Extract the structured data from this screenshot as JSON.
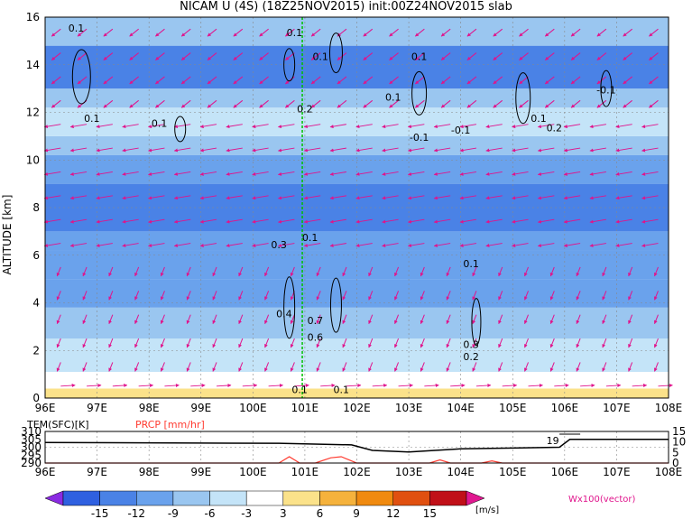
{
  "chart_data": [
    {
      "type": "heatmap",
      "title": "NICAM U (4S) (18Z25NOV2015) init:00Z24NOV2015 slab",
      "ylabel": "ALTITUDE [km]",
      "xlabel": "",
      "x_ticks": [
        "96E",
        "97E",
        "98E",
        "99E",
        "100E",
        "101E",
        "102E",
        "103E",
        "104E",
        "105E",
        "106E",
        "107E",
        "108E"
      ],
      "y_ticks": [
        "0",
        "2",
        "4",
        "6",
        "8",
        "10",
        "12",
        "14",
        "16"
      ],
      "xlim": [
        96,
        108
      ],
      "ylim": [
        0,
        16
      ],
      "grid": true,
      "marker_line_lon": 100.95,
      "bands": [
        {
          "y0": 0.0,
          "y1": 0.4,
          "value": 7
        },
        {
          "y0": 0.4,
          "y1": 1.1,
          "value": 4
        },
        {
          "y0": 1.1,
          "y1": 2.5,
          "value": -2
        },
        {
          "y0": 2.5,
          "y1": 3.8,
          "value": -4
        },
        {
          "y0": 3.8,
          "y1": 5.0,
          "value": -7
        },
        {
          "y0": 5.0,
          "y1": 6.2,
          "value": -8
        },
        {
          "y0": 6.2,
          "y1": 7.0,
          "value": -9
        },
        {
          "y0": 7.0,
          "y1": 9.0,
          "value": -12
        },
        {
          "y0": 9.0,
          "y1": 10.2,
          "value": -8
        },
        {
          "y0": 10.2,
          "y1": 11.0,
          "value": -4
        },
        {
          "y0": 11.0,
          "y1": 12.2,
          "value": 0
        },
        {
          "y0": 12.2,
          "y1": 13.0,
          "value": -5
        },
        {
          "y0": 13.0,
          "y1": 14.8,
          "value": -10
        },
        {
          "y0": 14.8,
          "y1": 16.0,
          "value": -5
        }
      ],
      "contour_labels": [
        {
          "text": "0.1",
          "x": 96.6,
          "y": 15.4
        },
        {
          "text": "0.1",
          "x": 100.8,
          "y": 15.2
        },
        {
          "text": "0.1",
          "x": 101.3,
          "y": 14.2
        },
        {
          "text": "0.1",
          "x": 103.2,
          "y": 14.2
        },
        {
          "text": "0.1",
          "x": 102.7,
          "y": 12.5
        },
        {
          "text": "0.1",
          "x": 96.9,
          "y": 11.6
        },
        {
          "text": "0.1",
          "x": 98.2,
          "y": 11.4
        },
        {
          "text": "0.2",
          "x": 101.0,
          "y": 12.0
        },
        {
          "text": "-0.1",
          "x": 103.2,
          "y": 10.8
        },
        {
          "text": "-0.1",
          "x": 104.0,
          "y": 11.1
        },
        {
          "text": "0.1",
          "x": 105.5,
          "y": 11.6
        },
        {
          "text": "0.2",
          "x": 105.8,
          "y": 11.2
        },
        {
          "text": "-0.1",
          "x": 106.8,
          "y": 12.8
        },
        {
          "text": "0.3",
          "x": 100.5,
          "y": 6.3
        },
        {
          "text": "0.1",
          "x": 101.1,
          "y": 6.6
        },
        {
          "text": "0.4",
          "x": 100.6,
          "y": 3.4
        },
        {
          "text": "0.1",
          "x": 104.2,
          "y": 5.5
        },
        {
          "text": "0.7",
          "x": 101.2,
          "y": 3.1
        },
        {
          "text": "0.6",
          "x": 101.2,
          "y": 2.4
        },
        {
          "text": "0.3",
          "x": 104.2,
          "y": 2.1
        },
        {
          "text": "0.2",
          "x": 104.2,
          "y": 1.6
        },
        {
          "text": "0.1",
          "x": 100.9,
          "y": 0.2
        },
        {
          "text": "0.1",
          "x": 101.7,
          "y": 0.2
        }
      ]
    },
    {
      "type": "line",
      "series": [
        {
          "name": "TEM(SFC)[K]",
          "x": [
            96,
            100.5,
            101.9,
            102.3,
            103.0,
            104.0,
            105.0,
            105.9,
            106.1,
            108
          ],
          "values": [
            303,
            302.5,
            301.5,
            298,
            297,
            299,
            299.5,
            300,
            305,
            305
          ]
        },
        {
          "name": "PRCP [mm/hr]",
          "x": [
            96,
            100.5,
            100.7,
            100.9,
            101.2,
            101.5,
            101.7,
            102.0,
            102.5,
            103.4,
            103.6,
            103.8,
            104.4,
            104.6,
            104.8,
            108
          ],
          "values": [
            0,
            0,
            3,
            0,
            0,
            2.5,
            3,
            0,
            0,
            0,
            1.5,
            0,
            0,
            1,
            0,
            0
          ]
        }
      ],
      "x_ticks": [
        "96E",
        "97E",
        "98E",
        "99E",
        "100E",
        "101E",
        "102E",
        "103E",
        "104E",
        "105E",
        "106E",
        "107E",
        "108E"
      ],
      "left_ticks": [
        "290",
        "295",
        "300",
        "305",
        "310"
      ],
      "right_ticks": [
        "0",
        "5",
        "10",
        "15"
      ],
      "annotation": "19"
    }
  ],
  "colorbar": {
    "ticks": [
      "-15",
      "-12",
      "-9",
      "-6",
      "-3",
      "3",
      "6",
      "9",
      "12",
      "15"
    ],
    "unit": "[m/s]",
    "colors": [
      "#8a2be2",
      "#2f60e0",
      "#4a82e6",
      "#6aa2ec",
      "#9ac6f0",
      "#c4e4f8",
      "#ffffff",
      "#fbe28a",
      "#f5b23c",
      "#f08a10",
      "#e05010",
      "#c01018",
      "#e01890"
    ]
  },
  "vector_label": "Wx100(vector)",
  "colors": {
    "arrow": "#e0148c",
    "contour": "#000000",
    "marker": "#00c000",
    "temp": "#000000",
    "prcp": "#ff3b30"
  }
}
